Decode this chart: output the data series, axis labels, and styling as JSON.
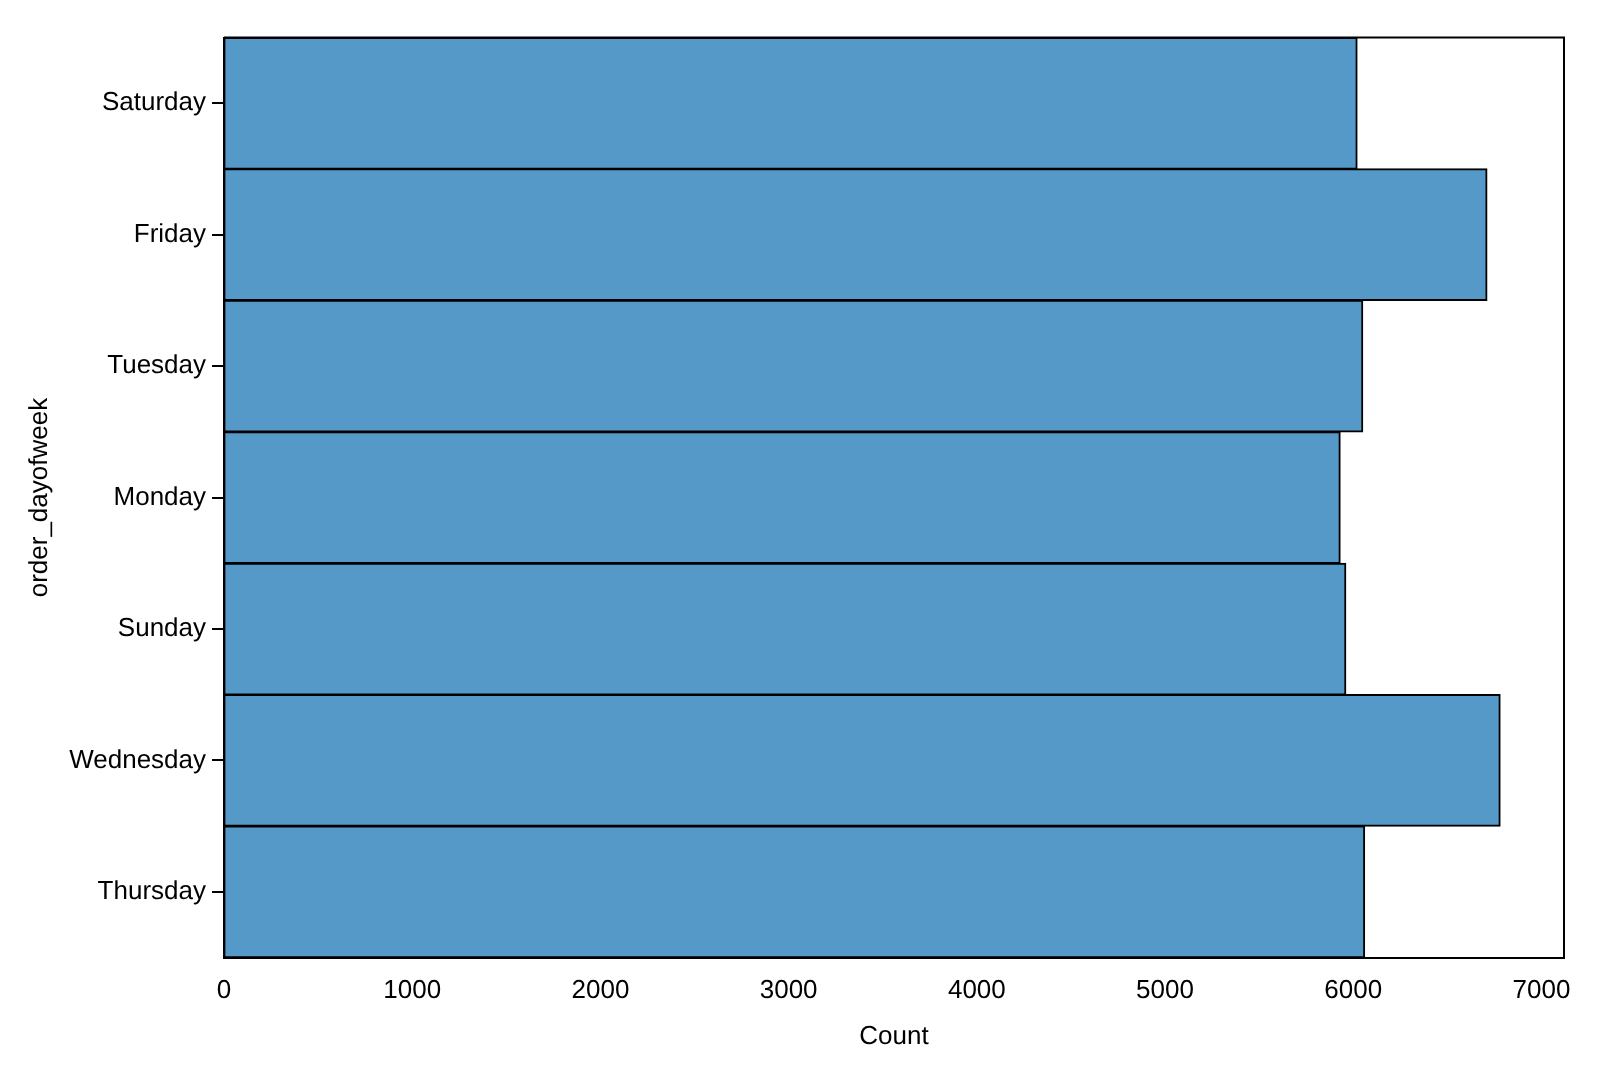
{
  "chart_data": {
    "type": "bar",
    "orientation": "horizontal",
    "xlabel": "Count",
    "ylabel": "order_dayofweek",
    "categories": [
      "Saturday",
      "Friday",
      "Tuesday",
      "Monday",
      "Sunday",
      "Wednesday",
      "Thursday"
    ],
    "values": [
      6020,
      6710,
      6050,
      5930,
      5960,
      6780,
      6060
    ],
    "color": "#5499c7",
    "xlim": [
      0,
      7120
    ],
    "xticks": [
      0,
      1000,
      2000,
      3000,
      4000,
      5000,
      6000,
      7000
    ],
    "grid": false,
    "legend": false
  }
}
